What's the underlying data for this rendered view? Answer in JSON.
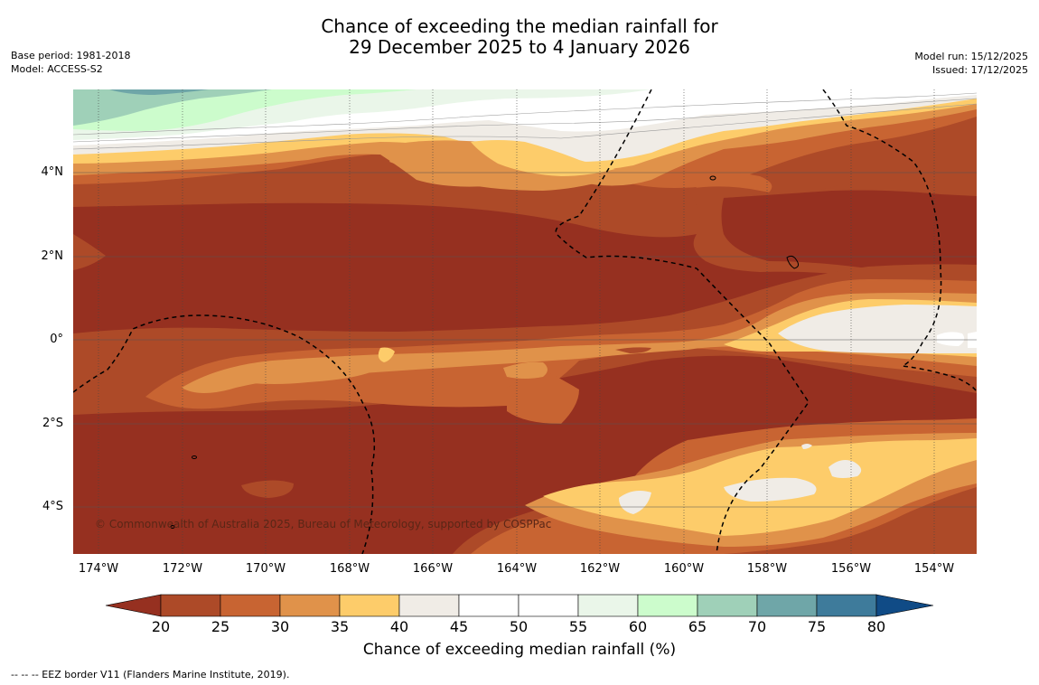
{
  "header": {
    "title_line1": "Chance of exceeding the median rainfall for",
    "title_line2": "29 December 2025 to 4 January 2026",
    "base_period": "Base period: 1981-2018",
    "model": "Model: ACCESS-S2",
    "model_run": "Model run: 15/12/2025",
    "issued": "Issued: 17/12/2025"
  },
  "map": {
    "lat_labels": [
      "4°N",
      "2°N",
      "0°",
      "2°S",
      "4°S"
    ],
    "lon_labels": [
      "174°W",
      "172°W",
      "170°W",
      "168°W",
      "166°W",
      "164°W",
      "162°W",
      "160°W",
      "158°W",
      "156°W",
      "154°W"
    ],
    "copyright": "© Commonwealth of Australia 2025, Bureau of Meteorology, supported by COSPPac"
  },
  "colorbar": {
    "title": "Chance of exceeding median rainfall (%)",
    "ticks": [
      "20",
      "25",
      "30",
      "35",
      "40",
      "45",
      "50",
      "55",
      "60",
      "65",
      "70",
      "75",
      "80"
    ],
    "colors": {
      "below_20": "#963020",
      "c20_25": "#ad4a28",
      "c25_30": "#c86432",
      "c30_35": "#e0924a",
      "c35_40": "#fdcc6a",
      "c40_45": "#f0ece6",
      "c45_50": "#ffffff",
      "c50_55": "#ffffff",
      "c55_60": "#eaf6e9",
      "c60_65": "#ccfccc",
      "c65_70": "#9fd0b8",
      "c70_75": "#6fa6a8",
      "c75_80": "#3e7b9b",
      "above_80": "#104b86"
    }
  },
  "footnote": "--  --  -- EEZ border V11 (Flanders Marine Institute, 2019)."
}
